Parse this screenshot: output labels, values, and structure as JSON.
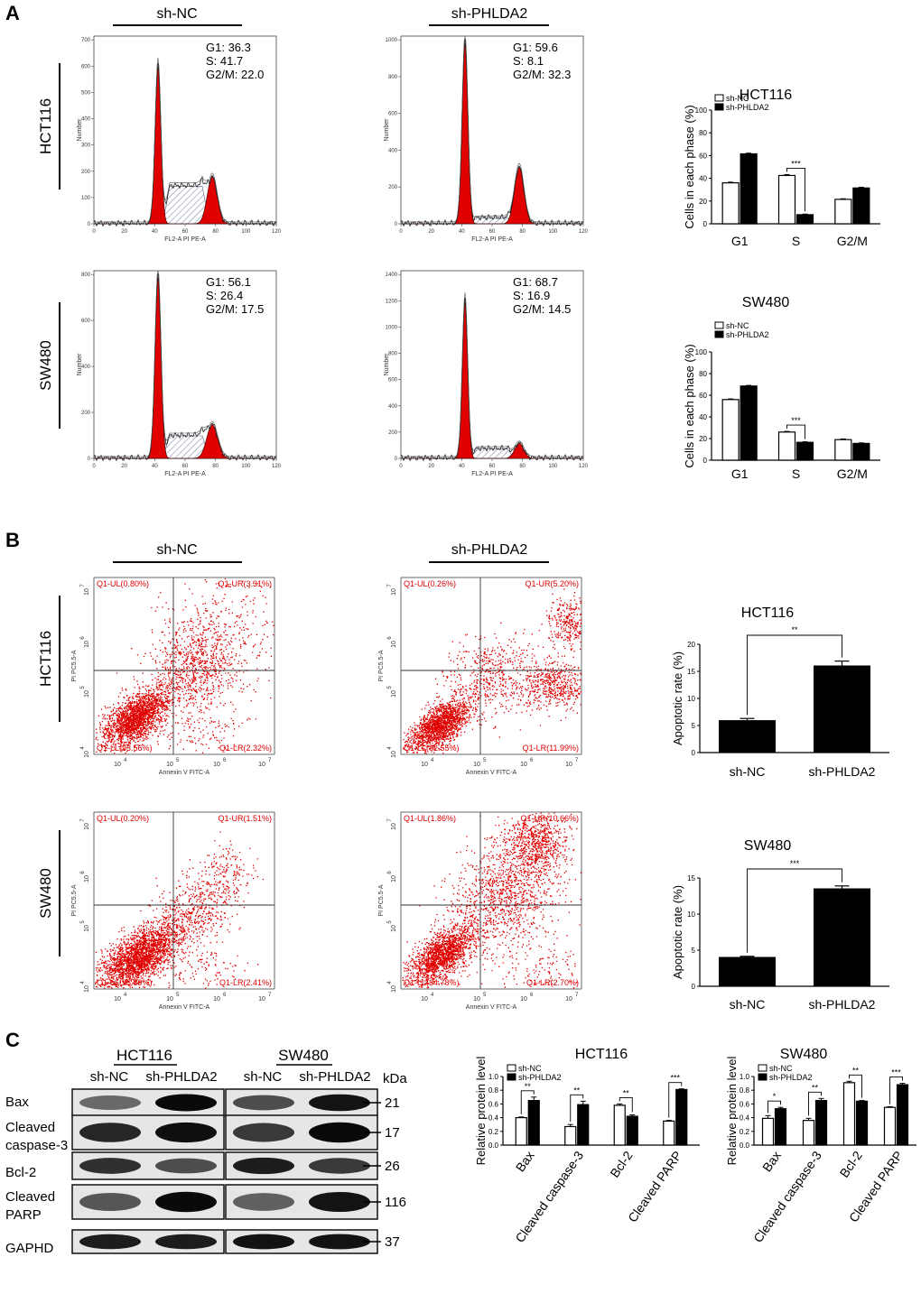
{
  "panel_labels": {
    "a": "A",
    "b": "B",
    "c": "C"
  },
  "colors": {
    "red": "#e00000",
    "black": "#000000",
    "grid": "#9aa0b0"
  },
  "groups": {
    "nc": "sh-NC",
    "phlda2": "sh-PHLDA2"
  },
  "cell_lines": {
    "hct": "HCT116",
    "sw": "SW480"
  },
  "flow_axis": {
    "cell_x_label": "FL2-A PI PE-A",
    "cell_y_label": "Number",
    "cell_x_ticks": [
      "0",
      "20",
      "40",
      "60",
      "80",
      "100",
      "120"
    ],
    "apop_x_label": "Annexin V FITC-A",
    "apop_y_label": "PI PC5.5-A",
    "log_ticks": [
      "10",
      "10",
      "10",
      "10"
    ],
    "log_exp": [
      "4",
      "5",
      "6",
      "7"
    ]
  },
  "cell_cycle": {
    "hct_nc": {
      "y_ticks": [
        "0",
        "100",
        "200",
        "300",
        "400",
        "500",
        "600",
        "700"
      ],
      "g1": "G1: 36.3",
      "s": "S: 41.7",
      "g2m": "G2/M: 22.0"
    },
    "hct_ph": {
      "y_ticks": [
        "0",
        "200",
        "400",
        "600",
        "800",
        "1000"
      ],
      "g1": "G1: 59.6",
      "s": "S: 8.1",
      "g2m": "G2/M: 32.3"
    },
    "sw_nc": {
      "y_ticks": [
        "0",
        "200",
        "400",
        "600",
        "800"
      ],
      "g1": "G1: 56.1",
      "s": "S: 26.4",
      "g2m": "G2/M: 17.5"
    },
    "sw_ph": {
      "y_ticks": [
        "0",
        "200",
        "400",
        "600",
        "800",
        "1000",
        "1200",
        "1400"
      ],
      "g1": "G1: 68.7",
      "s": "S: 16.9",
      "g2m": "G2/M: 14.5"
    }
  },
  "apoptosis": {
    "hct_nc": {
      "ul": "Q1-UL(0.80%)",
      "ur": "Q1-UR(3.31%)",
      "ll": "Q1-LL(93.56%)",
      "lr": "Q1-LR(2.32%)"
    },
    "hct_ph": {
      "ul": "Q1-UL(0.26%)",
      "ur": "Q1-UR(5.20%)",
      "ll": "Q1-LL(82.55%)",
      "lr": "Q1-LR(11.99%)"
    },
    "sw_nc": {
      "ul": "Q1-UL(0.20%)",
      "ur": "Q1-UR(1.51%)",
      "ll": "Q1-LL(95.89%)",
      "lr": "Q1-LR(2.41%)"
    },
    "sw_ph": {
      "ul": "Q1-UL(1.86%)",
      "ur": "Q1-UR(10.66%)",
      "ll": "Q1-LL(84.78%)",
      "lr": "Q1-LR(2.70%)"
    }
  },
  "western": {
    "proteins": [
      "Bax",
      "Cleaved caspase-3",
      "Bcl-2",
      "Cleaved PARP",
      "GAPHD"
    ],
    "labels": [
      "Bax",
      "Cleaved",
      "caspase-3",
      "Bcl-2",
      "Cleaved",
      "PARP",
      "GAPHD"
    ],
    "kda_label": "kDa",
    "kda": [
      "21",
      "17",
      "26",
      "116",
      "37"
    ]
  },
  "chart_data": [
    {
      "type": "bar",
      "title": "HCT116",
      "ylabel": "Cells in each phase (%)",
      "categories": [
        "G1",
        "S",
        "G2/M"
      ],
      "ylim": [
        0,
        100
      ],
      "yticks": [
        "0",
        "20",
        "40",
        "60",
        "80",
        "100"
      ],
      "series": [
        {
          "name": "sh-NC",
          "values": [
            36,
            42.5,
            21.5
          ],
          "errors": [
            0.6,
            0.8,
            0.5
          ]
        },
        {
          "name": "sh-PHLDA2",
          "values": [
            61.5,
            8,
            31.5
          ],
          "errors": [
            0.6,
            0.5,
            0.6
          ]
        }
      ],
      "annotations": [
        {
          "category": "S",
          "label": "***"
        }
      ]
    },
    {
      "type": "bar",
      "title": "SW480",
      "ylabel": "Cells in each phase (%)",
      "categories": [
        "G1",
        "S",
        "G2/M"
      ],
      "ylim": [
        0,
        100
      ],
      "yticks": [
        "0",
        "20",
        "40",
        "60",
        "80",
        "100"
      ],
      "series": [
        {
          "name": "sh-NC",
          "values": [
            56,
            26,
            19
          ],
          "errors": [
            0.6,
            0.6,
            0.6
          ]
        },
        {
          "name": "sh-PHLDA2",
          "values": [
            68.5,
            16.5,
            15.5
          ],
          "errors": [
            0.6,
            0.5,
            0.5
          ]
        }
      ],
      "annotations": [
        {
          "category": "S",
          "label": "***"
        }
      ]
    },
    {
      "type": "bar",
      "title": "HCT116",
      "ylabel": "Apoptotic rate (%)",
      "categories": [
        "sh-NC",
        "sh-PHLDA2"
      ],
      "ylim": [
        0,
        20
      ],
      "yticks": [
        "0",
        "5",
        "10",
        "15",
        "20"
      ],
      "values": [
        5.9,
        16
      ],
      "errors": [
        0.4,
        0.9
      ],
      "annotations": [
        {
          "label": "**"
        }
      ]
    },
    {
      "type": "bar",
      "title": "SW480",
      "ylabel": "Apoptotic rate (%)",
      "categories": [
        "sh-NC",
        "sh-PHLDA2"
      ],
      "ylim": [
        0,
        15
      ],
      "yticks": [
        "0",
        "5",
        "10",
        "15"
      ],
      "values": [
        4,
        13.5
      ],
      "errors": [
        0.15,
        0.4
      ],
      "annotations": [
        {
          "label": "***"
        }
      ]
    },
    {
      "type": "bar",
      "title": "HCT116",
      "ylabel": "Relative protein level",
      "categories": [
        "Bax",
        "Cleaved caspase-3",
        "Bcl-2",
        "Cleaved PARP"
      ],
      "ylim": [
        0,
        1.0
      ],
      "yticks": [
        "0.0",
        "0.2",
        "0.4",
        "0.6",
        "0.8",
        "1.0"
      ],
      "series": [
        {
          "name": "sh-NC",
          "values": [
            0.4,
            0.27,
            0.58,
            0.35
          ],
          "errors": [
            0.01,
            0.03,
            0.02,
            0.01
          ]
        },
        {
          "name": "sh-PHLDA2",
          "values": [
            0.65,
            0.59,
            0.42,
            0.81
          ],
          "errors": [
            0.05,
            0.05,
            0.02,
            0.01
          ]
        }
      ],
      "annotations": [
        {
          "label": "**"
        },
        {
          "label": "**"
        },
        {
          "label": "**"
        },
        {
          "label": "***"
        }
      ]
    },
    {
      "type": "bar",
      "title": "SW480",
      "ylabel": "Relative protein level",
      "categories": [
        "Bax",
        "Cleaved caspase-3",
        "Bcl-2",
        "Cleaved PARP"
      ],
      "ylim": [
        0,
        1.0
      ],
      "yticks": [
        "0.0",
        "0.2",
        "0.4",
        "0.6",
        "0.8",
        "1.0"
      ],
      "series": [
        {
          "name": "sh-NC",
          "values": [
            0.39,
            0.36,
            0.91,
            0.55
          ],
          "errors": [
            0.04,
            0.03,
            0.02,
            0.01
          ]
        },
        {
          "name": "sh-PHLDA2",
          "values": [
            0.53,
            0.65,
            0.64,
            0.88
          ],
          "errors": [
            0.02,
            0.03,
            0.01,
            0.02
          ]
        }
      ],
      "annotations": [
        {
          "label": "*"
        },
        {
          "label": "**"
        },
        {
          "label": "**"
        },
        {
          "label": "***"
        }
      ]
    }
  ]
}
